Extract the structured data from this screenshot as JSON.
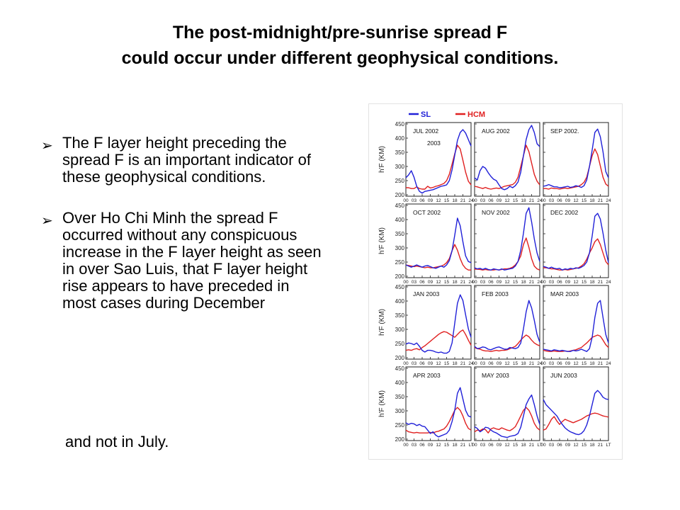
{
  "slide": {
    "title_line1": "The post-midnight/pre-sunrise spread F",
    "title_line2": "could occur under different geophysical conditions."
  },
  "bullets": [
    {
      "marker": "arrow-bullet-icon",
      "text": "The F layer height preceding the spread F is an important indicator of these geophysical conditions."
    },
    {
      "marker": "arrow-bullet-icon",
      "text": "Over Ho Chi Minh the spread F occurred without any conspicuous increase in the F layer height as seen in over Sao Luis, that F layer height rise appears to have preceded in most cases during December",
      "continuation": "and not in July."
    }
  ],
  "chart_data": {
    "type": "line",
    "legend": [
      {
        "name": "SL",
        "color": "#2020d8"
      },
      {
        "name": "HCM",
        "color": "#e02020"
      }
    ],
    "legend_position": "top-left",
    "ylabel": "h'F (KM)",
    "ylim": [
      200,
      450
    ],
    "yticks": [
      200,
      250,
      300,
      350,
      400,
      450
    ],
    "xlim": [
      0,
      24
    ],
    "xticks": [
      "00",
      "03",
      "06",
      "09",
      "12",
      "15",
      "18",
      "21",
      "24"
    ],
    "x_unit_label": "LT",
    "x": [
      0,
      1,
      2,
      3,
      4,
      5,
      6,
      7,
      8,
      9,
      10,
      11,
      12,
      13,
      14,
      15,
      16,
      17,
      18,
      19,
      20,
      21,
      22,
      23,
      24
    ],
    "panels": [
      {
        "label": "JUL 2002",
        "sublabel": "2003",
        "SL": [
          260,
          270,
          285,
          262,
          230,
          212,
          206,
          212,
          214,
          216,
          218,
          222,
          226,
          230,
          232,
          235,
          250,
          288,
          340,
          392,
          420,
          430,
          418,
          395,
          372
        ],
        "HCM": [
          225,
          225,
          222,
          222,
          228,
          222,
          220,
          220,
          230,
          224,
          226,
          230,
          232,
          236,
          240,
          250,
          272,
          308,
          345,
          375,
          362,
          322,
          280,
          248,
          235
        ]
      },
      {
        "label": "AUG 2002",
        "SL": [
          260,
          252,
          285,
          300,
          294,
          278,
          265,
          255,
          250,
          235,
          222,
          218,
          222,
          230,
          225,
          232,
          245,
          280,
          338,
          395,
          430,
          445,
          420,
          380,
          370
        ],
        "HCM": [
          230,
          228,
          225,
          222,
          226,
          222,
          220,
          222,
          224,
          222,
          226,
          230,
          232,
          234,
          236,
          244,
          262,
          300,
          338,
          375,
          352,
          312,
          272,
          248,
          235
        ]
      },
      {
        "label": "SEP 2002.",
        "SL": [
          230,
          232,
          236,
          232,
          228,
          228,
          225,
          226,
          228,
          230,
          226,
          228,
          232,
          230,
          226,
          232,
          252,
          300,
          358,
          420,
          432,
          405,
          352,
          282,
          260
        ],
        "HCM": [
          222,
          222,
          220,
          224,
          222,
          222,
          220,
          222,
          224,
          222,
          224,
          226,
          228,
          230,
          236,
          244,
          262,
          300,
          338,
          362,
          342,
          302,
          262,
          238,
          230
        ]
      },
      {
        "label": "OCT 2002",
        "SL": [
          240,
          236,
          232,
          236,
          240,
          236,
          232,
          236,
          238,
          234,
          230,
          228,
          232,
          236,
          232,
          240,
          255,
          290,
          345,
          405,
          378,
          322,
          272,
          252,
          248
        ],
        "HCM": [
          240,
          238,
          236,
          234,
          236,
          234,
          232,
          230,
          232,
          230,
          230,
          232,
          234,
          236,
          240,
          248,
          262,
          290,
          312,
          292,
          262,
          240,
          228,
          222,
          222
        ]
      },
      {
        "label": "NOV 2002",
        "SL": [
          230,
          226,
          228,
          224,
          228,
          224,
          222,
          226,
          224,
          222,
          226,
          222,
          224,
          226,
          228,
          236,
          252,
          292,
          352,
          422,
          442,
          392,
          332,
          282,
          252
        ],
        "HCM": [
          225,
          225,
          224,
          222,
          224,
          222,
          222,
          222,
          224,
          222,
          224,
          226,
          226,
          228,
          232,
          240,
          252,
          272,
          312,
          335,
          302,
          262,
          236,
          226,
          222
        ]
      },
      {
        "label": "DEC 2002",
        "SL": [
          235,
          232,
          228,
          232,
          228,
          226,
          228,
          222,
          226,
          224,
          228,
          226,
          230,
          228,
          232,
          238,
          250,
          282,
          342,
          412,
          422,
          402,
          352,
          292,
          248
        ],
        "HCM": [
          230,
          230,
          228,
          226,
          226,
          224,
          222,
          222,
          224,
          222,
          224,
          226,
          228,
          230,
          236,
          244,
          260,
          282,
          300,
          322,
          332,
          312,
          282,
          252,
          240
        ]
      },
      {
        "label": "JAN 2003",
        "SL": [
          248,
          252,
          250,
          246,
          252,
          240,
          226,
          220,
          226,
          226,
          224,
          220,
          218,
          220,
          216,
          216,
          222,
          252,
          322,
          392,
          422,
          402,
          352,
          302,
          272
        ],
        "HCM": [
          226,
          228,
          226,
          230,
          232,
          228,
          236,
          242,
          250,
          258,
          266,
          274,
          282,
          288,
          292,
          290,
          284,
          278,
          272,
          282,
          292,
          298,
          282,
          262,
          244
        ]
      },
      {
        "label": "FEB 2003",
        "SL": [
          240,
          232,
          234,
          238,
          236,
          230,
          228,
          232,
          236,
          238,
          234,
          230,
          230,
          236,
          234,
          232,
          236,
          252,
          302,
          362,
          402,
          376,
          332,
          282,
          255
        ],
        "HCM": [
          236,
          232,
          230,
          226,
          224,
          224,
          222,
          224,
          226,
          224,
          226,
          226,
          228,
          232,
          236,
          240,
          250,
          262,
          272,
          280,
          274,
          262,
          252,
          246,
          242
        ]
      },
      {
        "label": "MAR 2003",
        "SL": [
          230,
          228,
          226,
          224,
          228,
          226,
          224,
          226,
          224,
          222,
          222,
          226,
          224,
          226,
          230,
          226,
          222,
          232,
          272,
          342,
          392,
          402,
          342,
          282,
          252
        ],
        "HCM": [
          226,
          224,
          222,
          222,
          224,
          222,
          222,
          222,
          224,
          222,
          224,
          226,
          228,
          232,
          236,
          244,
          252,
          262,
          272,
          276,
          280,
          276,
          262,
          246,
          236
        ]
      },
      {
        "label": "APR 2003",
        "SL": [
          258,
          252,
          256,
          254,
          248,
          252,
          246,
          244,
          232,
          220,
          226,
          214,
          208,
          212,
          216,
          220,
          232,
          262,
          302,
          362,
          382,
          342,
          302,
          282,
          278
        ],
        "HCM": [
          232,
          226,
          224,
          222,
          224,
          222,
          222,
          222,
          222,
          224,
          222,
          226,
          228,
          232,
          236,
          246,
          262,
          282,
          302,
          312,
          302,
          282,
          256,
          238,
          232
        ]
      },
      {
        "label": "MAY 2003",
        "SL": [
          244,
          238,
          226,
          232,
          242,
          240,
          232,
          226,
          222,
          216,
          210,
          208,
          206,
          210,
          212,
          214,
          220,
          242,
          282,
          322,
          342,
          356,
          322,
          282,
          252
        ],
        "HCM": [
          226,
          232,
          230,
          236,
          234,
          222,
          236,
          240,
          236,
          234,
          240,
          236,
          232,
          230,
          236,
          244,
          262,
          282,
          302,
          312,
          302,
          282,
          256,
          240,
          232
        ]
      },
      {
        "label": "JUN 2003",
        "SL": [
          340,
          322,
          312,
          302,
          292,
          282,
          266,
          252,
          240,
          232,
          226,
          222,
          218,
          216,
          220,
          230,
          250,
          282,
          322,
          362,
          372,
          362,
          348,
          342,
          340
        ],
        "HCM": [
          232,
          236,
          252,
          270,
          280,
          264,
          252,
          262,
          270,
          266,
          262,
          258,
          262,
          266,
          270,
          276,
          282,
          286,
          290,
          292,
          290,
          286,
          282,
          280,
          278
        ]
      }
    ]
  }
}
